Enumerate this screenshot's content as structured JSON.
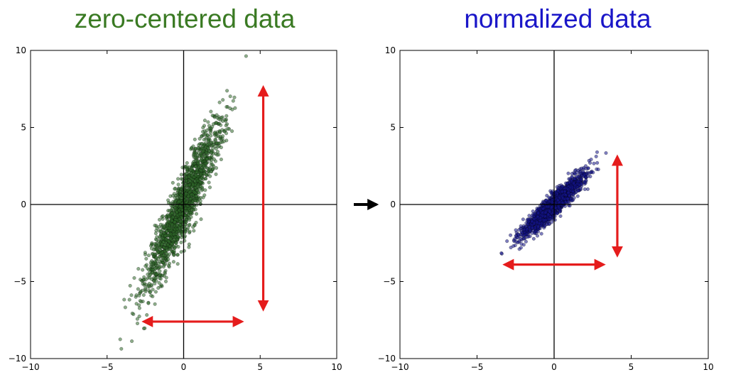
{
  "colors": {
    "left_title": "#3a7a23",
    "right_title": "#1a16c8",
    "left_points": "#2f6a2a",
    "right_points": "#14148a",
    "range_arrows": "#e51c1c",
    "between_arrow": "#000000"
  },
  "chart_data": [
    {
      "type": "scatter",
      "title": "zero-centered data",
      "xlabel": "",
      "ylabel": "",
      "xlim": [
        -10,
        10
      ],
      "ylim": [
        -10,
        10
      ],
      "xticks": [
        -10,
        -5,
        0,
        5,
        10
      ],
      "yticks": [
        10,
        5,
        0,
        -5,
        -10
      ],
      "xtick_labels": [
        "−10",
        "−5",
        "0",
        "5",
        "10"
      ],
      "ytick_labels": [
        "10",
        "5",
        "0",
        "−5",
        "−10"
      ],
      "grid": false,
      "axes_lines_through_origin": true,
      "point_color": "#2f6a2a",
      "distribution": {
        "n_points": 1600,
        "center": [
          0,
          0
        ],
        "std_x": 1.3,
        "std_y": 2.8,
        "correlation": 0.93
      },
      "annotations": [
        {
          "type": "double-arrow",
          "from": [
            -2.6,
            -7.6
          ],
          "to": [
            3.8,
            -7.6
          ]
        },
        {
          "type": "double-arrow",
          "from": [
            5.2,
            7.6
          ],
          "to": [
            5.2,
            -6.8
          ]
        }
      ]
    },
    {
      "type": "scatter",
      "title": "normalized data",
      "xlabel": "",
      "ylabel": "",
      "xlim": [
        -10,
        10
      ],
      "ylim": [
        -10,
        10
      ],
      "xticks": [
        -10,
        -5,
        0,
        5,
        10
      ],
      "yticks": [
        10,
        5,
        0,
        -5,
        -10
      ],
      "xtick_labels": [
        "−10",
        "−5",
        "0",
        "5",
        "10"
      ],
      "ytick_labels": [
        "10",
        "5",
        "0",
        "−5",
        "−10"
      ],
      "grid": false,
      "axes_lines_through_origin": true,
      "point_color": "#14148a",
      "distribution": {
        "n_points": 1600,
        "center": [
          0,
          0
        ],
        "std_x": 1.0,
        "std_y": 1.0,
        "correlation": 0.93
      },
      "annotations": [
        {
          "type": "double-arrow",
          "from": [
            -3.2,
            -3.9
          ],
          "to": [
            3.2,
            -3.9
          ]
        },
        {
          "type": "double-arrow",
          "from": [
            4.1,
            3.1
          ],
          "to": [
            4.1,
            -3.3
          ]
        }
      ]
    }
  ]
}
